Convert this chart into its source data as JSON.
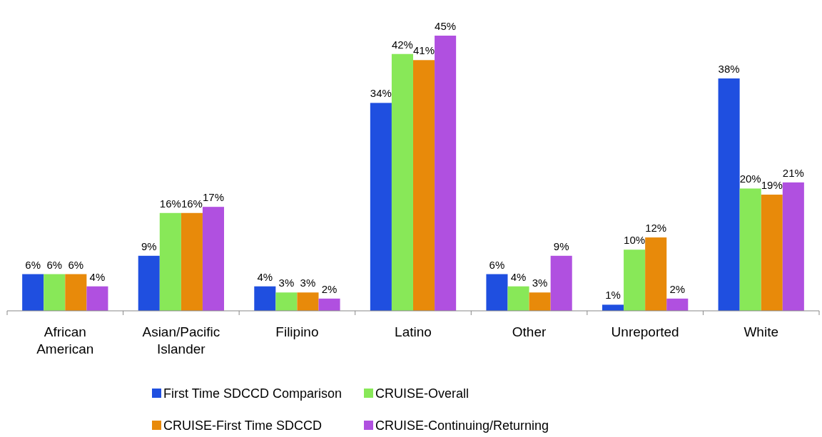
{
  "chart_data": {
    "type": "bar",
    "categories": [
      "African American",
      "Asian/Pacific Islander",
      "Filipino",
      "Latino",
      "Other",
      "Unreported",
      "White"
    ],
    "series": [
      {
        "name": "First Time SDCCD Comparison",
        "color": "#1f4fe0",
        "values": [
          6,
          9,
          4,
          34,
          6,
          1,
          38
        ],
        "value_labels": [
          "6%",
          "9%",
          "4%",
          "34%",
          "6%",
          "1%",
          "38%"
        ]
      },
      {
        "name": "CRUISE-Overall",
        "color": "#88e858",
        "values": [
          6,
          16,
          3,
          42,
          4,
          10,
          20
        ],
        "value_labels": [
          "6%",
          "16%",
          "3%",
          "42%",
          "4%",
          "10%",
          "20%"
        ]
      },
      {
        "name": "CRUISE-First Time SDCCD",
        "color": "#e88a0a",
        "values": [
          6,
          16,
          3,
          41,
          3,
          12,
          19
        ],
        "value_labels": [
          "6%",
          "16%",
          "3%",
          "41%",
          "3%",
          "12%",
          "19%"
        ]
      },
      {
        "name": "CRUISE-Continuing/Returning",
        "color": "#b050e0",
        "values": [
          4,
          17,
          2,
          45,
          9,
          2,
          21
        ],
        "value_labels": [
          "4%",
          "17%",
          "2%",
          "45%",
          "9%",
          "2%",
          "21%"
        ]
      }
    ],
    "legend": "bottom"
  }
}
